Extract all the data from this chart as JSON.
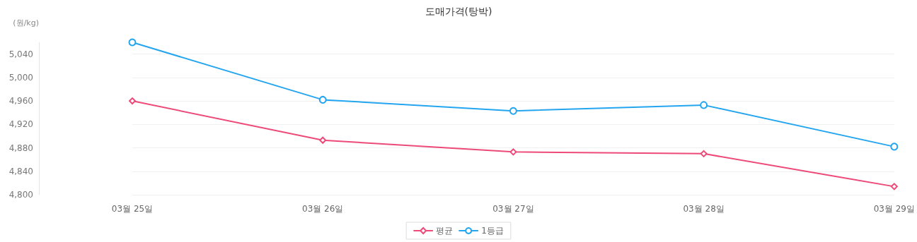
{
  "chart_data": {
    "type": "line",
    "title": "도매가격(탕박)",
    "ylabel": "(원/kg)",
    "categories": [
      "03월 25일",
      "03월 26일",
      "03월 27일",
      "03월 28일",
      "03월 29일"
    ],
    "series": [
      {
        "name": "평균",
        "color": "#ee4a79",
        "marker": "diamond",
        "values": [
          4960,
          4893,
          4873,
          4870,
          4814
        ]
      },
      {
        "name": "1등급",
        "color": "#24a5ef",
        "marker": "circle",
        "values": [
          5060,
          4962,
          4943,
          4953,
          4882
        ]
      }
    ],
    "ylim": [
      4800,
      5060
    ],
    "yticks": [
      {
        "value": 4800,
        "label": "4,800"
      },
      {
        "value": 4840,
        "label": "4,840"
      },
      {
        "value": 4880,
        "label": "4,880"
      },
      {
        "value": 4920,
        "label": "4,920"
      },
      {
        "value": 4960,
        "label": "4,960"
      },
      {
        "value": 5000,
        "label": "5,000"
      },
      {
        "value": 5040,
        "label": "5,040"
      }
    ],
    "grid": "y",
    "legend": "bottom",
    "line_style": "solid"
  }
}
